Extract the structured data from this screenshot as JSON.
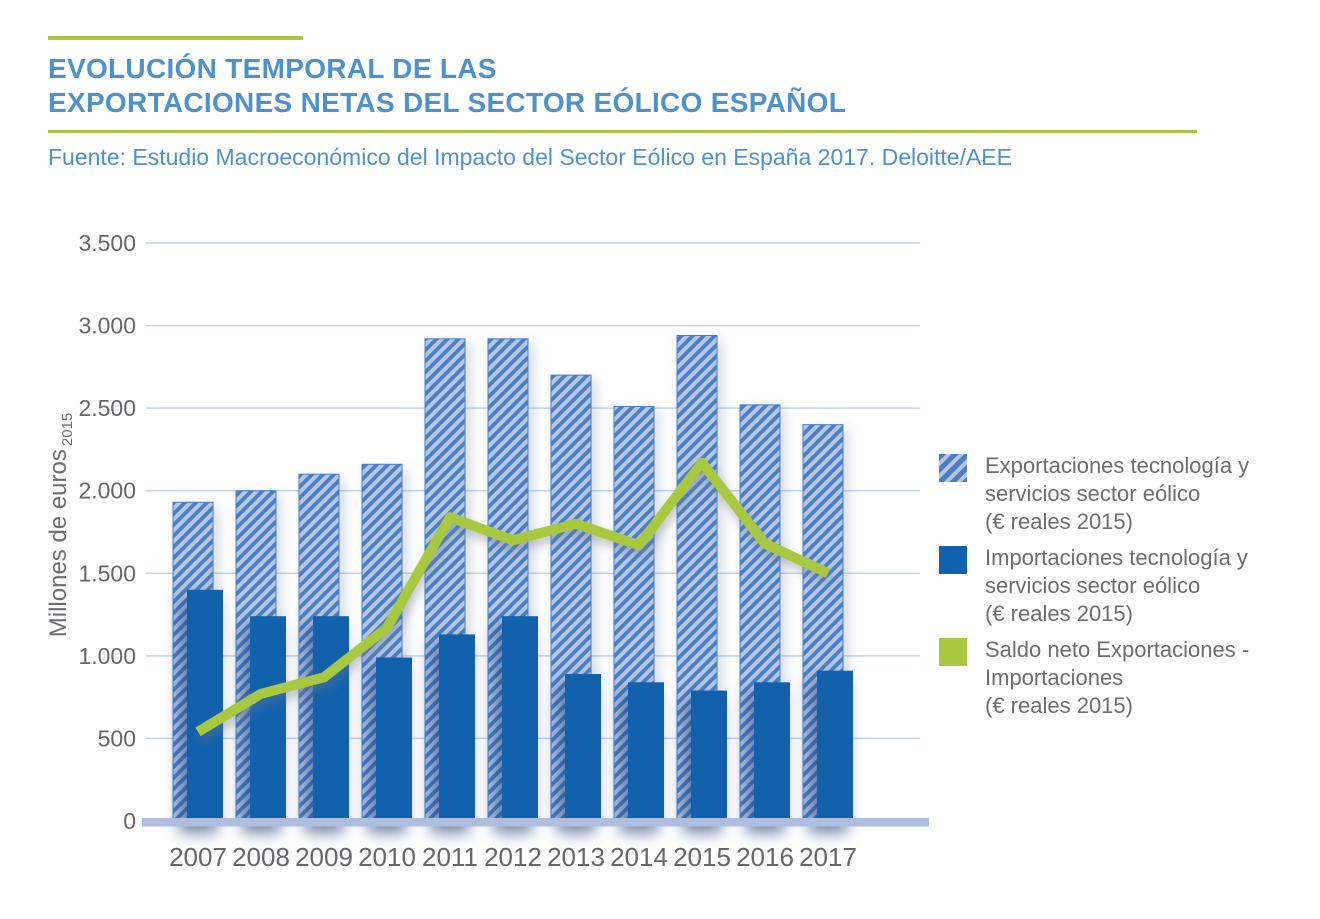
{
  "header": {
    "title_line1": "EVOLUCIÓN TEMPORAL DE LAS",
    "title_line2": "EXPORTACIONES NETAS DEL SECTOR EÓLICO ESPAÑOL",
    "source": "Fuente: Estudio Macroeconómico del Impacto del Sector Eólico en España 2017. Deloitte/AEE",
    "title_color": "#4e92cc",
    "accent_color": "#a7c83f"
  },
  "chart_data": {
    "type": "bar",
    "categories": [
      "2007",
      "2008",
      "2009",
      "2010",
      "2011",
      "2012",
      "2013",
      "2014",
      "2015",
      "2016",
      "2017"
    ],
    "series": [
      {
        "name": "Exportaciones tecnología y servicios sector eólico (€ reales 2015)",
        "kind": "bar",
        "style": "hatched",
        "color": "#4a80c3",
        "stripe_color": "#b5c6e7",
        "values": [
          1930,
          2000,
          2100,
          2160,
          2920,
          2920,
          2700,
          2510,
          2940,
          2520,
          2400
        ]
      },
      {
        "name": "Importaciones tecnología y servicios sector eólico (€ reales 2015)",
        "kind": "bar",
        "style": "solid",
        "color": "#1261ad",
        "values": [
          1400,
          1240,
          1240,
          990,
          1130,
          1240,
          890,
          840,
          790,
          840,
          910
        ]
      },
      {
        "name": "Saldo neto Exportaciones - Importaciones (€ reales 2015)",
        "kind": "line",
        "color": "#a7c83f",
        "values": [
          540,
          770,
          870,
          1170,
          1840,
          1700,
          1800,
          1670,
          2170,
          1680,
          1500
        ]
      }
    ],
    "title": "",
    "xlabel": "",
    "ylabel": "Millones de euros",
    "ylabel_subscript": "2015",
    "ylim": [
      0,
      3500
    ],
    "ytick_step": 500,
    "ytick_labels": [
      "0",
      "500",
      "1.000",
      "1.500",
      "2.000",
      "2.500",
      "3.000",
      "3.500"
    ],
    "grid": true,
    "gridline_color": "#c3d4eb",
    "baseline_color": "#afbede",
    "legend_position": "right"
  },
  "legend": {
    "items": [
      {
        "swatch": "hatched-blue",
        "lines": [
          "Exportaciones tecnología y",
          "servicios sector eólico",
          "(€ reales 2015)"
        ]
      },
      {
        "swatch": "solid-blue",
        "lines": [
          "Importaciones tecnología y",
          "servicios sector eólico",
          "(€ reales 2015)"
        ]
      },
      {
        "swatch": "green",
        "lines": [
          "Saldo neto Exportaciones -",
          "Importaciones",
          "(€ reales 2015)"
        ]
      }
    ]
  }
}
